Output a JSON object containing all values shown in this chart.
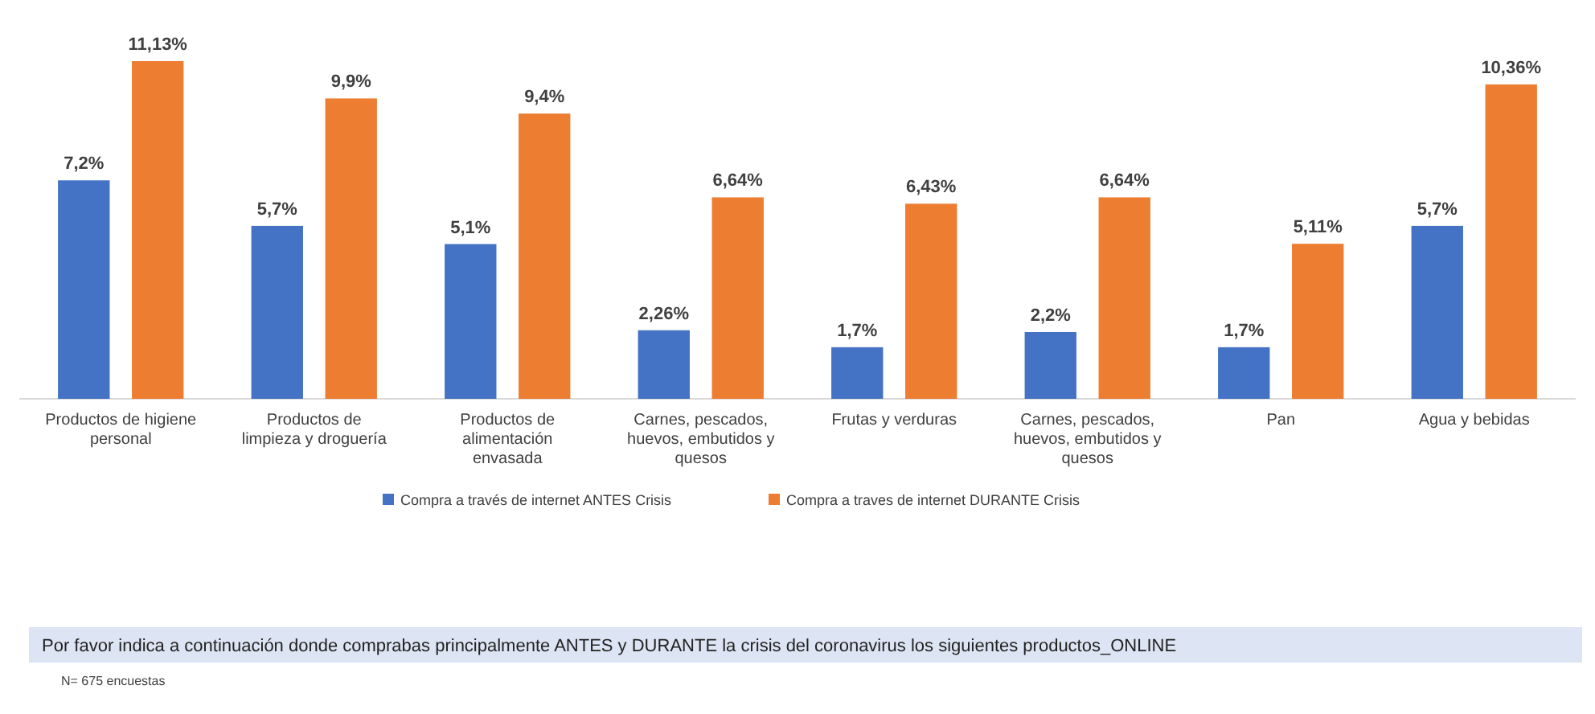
{
  "chart_data": {
    "type": "bar",
    "title": "Por favor indica a continuación donde comprabas principalmente ANTES y DURANTE  la crisis del coronavirus los siguientes productos_ONLINE",
    "categories": [
      "Productos de higiene personal",
      "Productos de limpieza y droguería",
      "Productos de alimentación envasada",
      "Carnes, pescados, huevos, embutidos y quesos",
      "Frutas y verduras",
      "Carnes, pescados, huevos, embutidos y quesos",
      "Pan",
      "Agua y bebidas"
    ],
    "series": [
      {
        "name": "Compra a través de internet ANTES Crisis",
        "color": "#4472c4",
        "values": [
          7.2,
          5.7,
          5.1,
          2.26,
          1.7,
          2.2,
          1.7,
          5.7
        ],
        "value_labels": [
          "7,2%",
          "5,7%",
          "5,1%",
          "2,26%",
          "1,7%",
          "2,2%",
          "1,7%",
          "5,7%"
        ]
      },
      {
        "name": "Compra a traves de internet DURANTE Crisis",
        "color": "#ed7d31",
        "values": [
          11.13,
          9.9,
          9.4,
          6.64,
          6.43,
          6.64,
          5.11,
          10.36
        ],
        "value_labels": [
          "11,13%",
          "9,9%",
          "9,4%",
          "6,64%",
          "6,43%",
          "6,64%",
          "5,11%",
          "10,36%"
        ]
      }
    ],
    "legend": "bottom",
    "annotations": [
      "N= 675 encuestas"
    ]
  }
}
